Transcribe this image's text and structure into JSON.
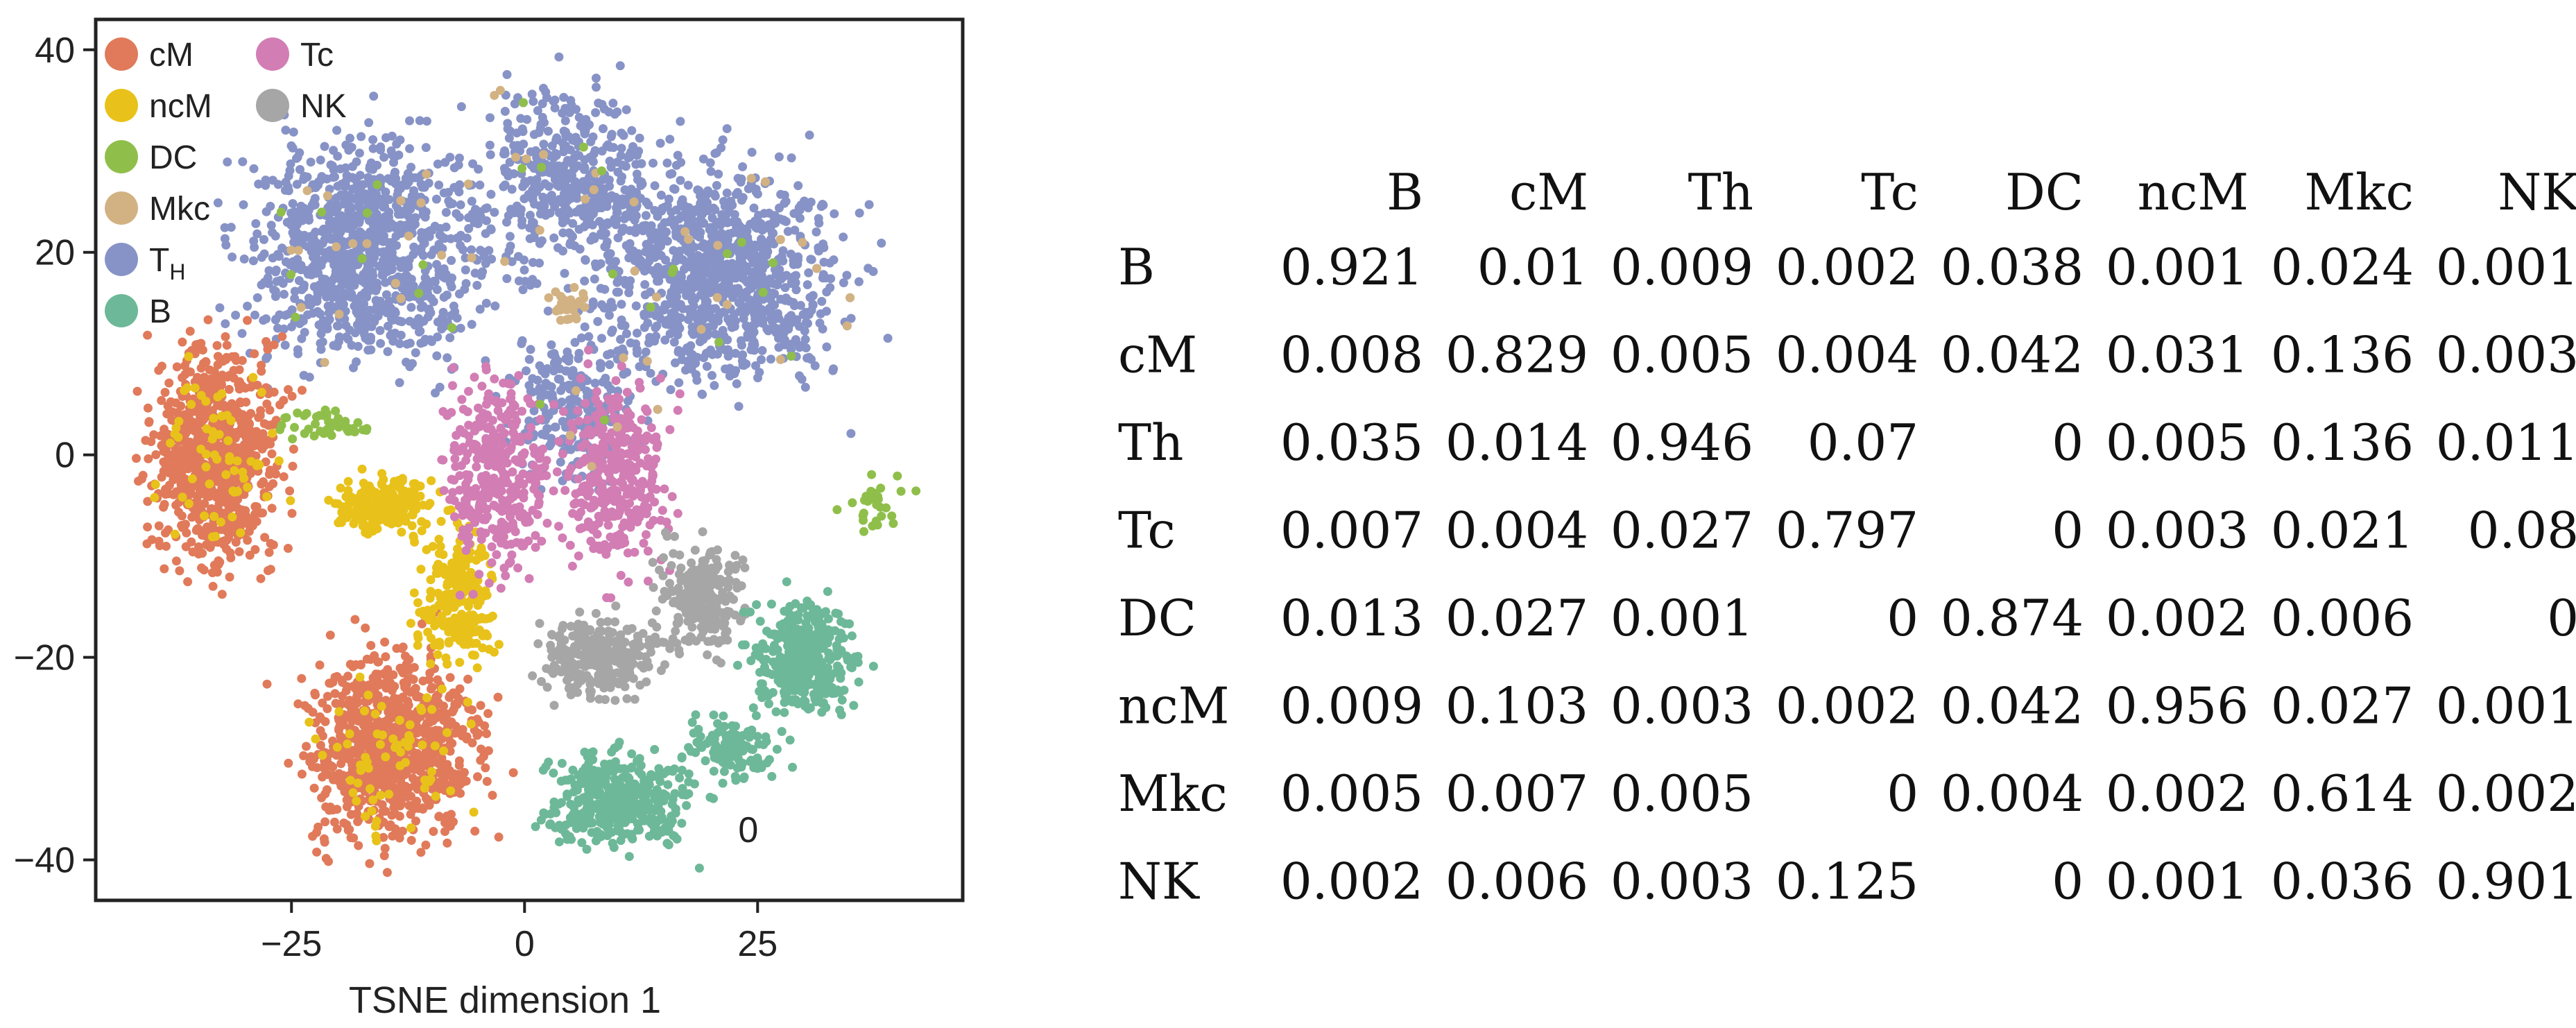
{
  "chart_data": [
    {
      "type": "scatter",
      "title": "",
      "xlabel": "TSNE dimension 1",
      "ylabel": "",
      "xlim": [
        -46,
        47
      ],
      "ylim": [
        -44,
        43
      ],
      "xticks": [
        -25,
        0,
        25
      ],
      "yticks": [
        -40,
        -20,
        0,
        20,
        40
      ],
      "grid": false,
      "legend_position": "top-left",
      "legend": [
        {
          "key": "cM",
          "label": "cM",
          "color": "#E07A5A"
        },
        {
          "key": "ncM",
          "label": "ncM",
          "color": "#E8C21A"
        },
        {
          "key": "DC",
          "label": "DC",
          "color": "#8FBF4A"
        },
        {
          "key": "Mkc",
          "label": "Mkc",
          "color": "#D2B283"
        },
        {
          "key": "TH",
          "label": "T",
          "sub": "H",
          "color": "#8793C6"
        },
        {
          "key": "B",
          "label": "B",
          "color": "#6DB898"
        },
        {
          "key": "Tc",
          "label": "Tc",
          "color": "#D27DB4"
        },
        {
          "key": "NK",
          "label": "NK",
          "color": "#A6A6A6"
        }
      ],
      "annotations": [
        {
          "text": "0",
          "x": 24,
          "y": -37
        }
      ],
      "clusters": [
        {
          "series": "TH",
          "cx": -17,
          "cy": 20,
          "sx": 8,
          "sy": 7,
          "n": 1000
        },
        {
          "series": "TH",
          "cx": 21,
          "cy": 18,
          "sx": 8,
          "sy": 7,
          "n": 1000
        },
        {
          "series": "TH",
          "cx": 5,
          "cy": 27,
          "sx": 6,
          "sy": 6,
          "n": 450
        },
        {
          "series": "TH",
          "cx": 5,
          "cy": 5,
          "sx": 4,
          "sy": 5,
          "n": 220
        },
        {
          "series": "cM",
          "cx": -33,
          "cy": 0,
          "sx": 4.5,
          "sy": 7,
          "n": 800
        },
        {
          "series": "cM",
          "cx": -14,
          "cy": -29,
          "sx": 6,
          "sy": 6,
          "n": 850
        },
        {
          "series": "ncM",
          "cx": -15,
          "cy": -5,
          "sx": 3.5,
          "sy": 1.8,
          "n": 220
        },
        {
          "series": "ncM",
          "cx": -7,
          "cy": -14,
          "sx": 2.5,
          "sy": 4,
          "n": 250
        },
        {
          "series": "Tc",
          "cx": -3,
          "cy": -2,
          "sx": 3.5,
          "sy": 6,
          "n": 350
        },
        {
          "series": "Tc",
          "cx": 10,
          "cy": -2,
          "sx": 3.5,
          "sy": 6,
          "n": 350
        },
        {
          "series": "NK",
          "cx": 8,
          "cy": -20,
          "sx": 4,
          "sy": 2.5,
          "n": 280
        },
        {
          "series": "NK",
          "cx": 19,
          "cy": -14,
          "sx": 3,
          "sy": 3.5,
          "n": 250
        },
        {
          "series": "B",
          "cx": 30,
          "cy": -20,
          "sx": 3.5,
          "sy": 3.5,
          "n": 380
        },
        {
          "series": "B",
          "cx": 10,
          "cy": -34,
          "sx": 5,
          "sy": 3,
          "n": 400
        },
        {
          "series": "B",
          "cx": 22,
          "cy": -29,
          "sx": 3,
          "sy": 2,
          "n": 120
        },
        {
          "series": "DC",
          "cx": -21,
          "cy": 3,
          "sx": 3,
          "sy": 1,
          "n": 45
        },
        {
          "series": "DC",
          "cx": 37,
          "cy": -5,
          "sx": 2.5,
          "sy": 1.5,
          "n": 30
        },
        {
          "series": "Mkc",
          "cx": 5,
          "cy": 15,
          "sx": 1.2,
          "sy": 1.2,
          "n": 30
        }
      ],
      "scatter_mix": [
        {
          "series": "ncM",
          "near": "cM",
          "fraction": 0.08
        },
        {
          "series": "Mkc",
          "near": "TH",
          "fraction": 0.02
        },
        {
          "series": "DC",
          "near": "TH",
          "fraction": 0.01
        }
      ]
    },
    {
      "type": "table",
      "columns": [
        "B",
        "cM",
        "Th",
        "Tc",
        "DC",
        "ncM",
        "Mkc",
        "NK"
      ],
      "rows": [
        {
          "label": "B",
          "values": [
            "0.921",
            "0.01",
            "0.009",
            "0.002",
            "0.038",
            "0.001",
            "0.024",
            "0.001"
          ]
        },
        {
          "label": "cM",
          "values": [
            "0.008",
            "0.829",
            "0.005",
            "0.004",
            "0.042",
            "0.031",
            "0.136",
            "0.003"
          ]
        },
        {
          "label": "Th",
          "values": [
            "0.035",
            "0.014",
            "0.946",
            "0.07",
            "0",
            "0.005",
            "0.136",
            "0.011"
          ]
        },
        {
          "label": "Tc",
          "values": [
            "0.007",
            "0.004",
            "0.027",
            "0.797",
            "0",
            "0.003",
            "0.021",
            "0.08"
          ]
        },
        {
          "label": "DC",
          "values": [
            "0.013",
            "0.027",
            "0.001",
            "0",
            "0.874",
            "0.002",
            "0.006",
            "0"
          ]
        },
        {
          "label": "ncM",
          "values": [
            "0.009",
            "0.103",
            "0.003",
            "0.002",
            "0.042",
            "0.956",
            "0.027",
            "0.001"
          ]
        },
        {
          "label": "Mkc",
          "values": [
            "0.005",
            "0.007",
            "0.005",
            "0",
            "0.004",
            "0.002",
            "0.614",
            "0.002"
          ]
        },
        {
          "label": "NK",
          "values": [
            "0.002",
            "0.006",
            "0.003",
            "0.125",
            "0",
            "0.001",
            "0.036",
            "0.901"
          ]
        }
      ]
    }
  ]
}
